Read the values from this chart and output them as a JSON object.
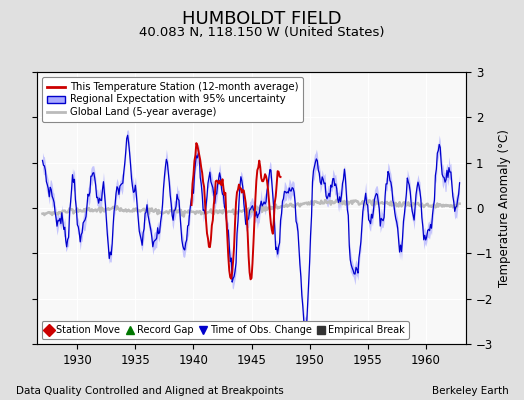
{
  "title": "HUMBOLDT FIELD",
  "subtitle": "40.083 N, 118.150 W (United States)",
  "ylabel": "Temperature Anomaly (°C)",
  "xlim": [
    1926.5,
    1963.5
  ],
  "ylim": [
    -3,
    3
  ],
  "yticks": [
    -3,
    -2,
    -1,
    0,
    1,
    2,
    3
  ],
  "xticks": [
    1930,
    1935,
    1940,
    1945,
    1950,
    1955,
    1960
  ],
  "footer_left": "Data Quality Controlled and Aligned at Breakpoints",
  "footer_right": "Berkeley Earth",
  "legend_entries": [
    "This Temperature Station (12-month average)",
    "Regional Expectation with 95% uncertainty",
    "Global Land (5-year average)"
  ],
  "legend_marker_entries": [
    {
      "label": "Station Move",
      "color": "#cc0000",
      "marker": "D"
    },
    {
      "label": "Record Gap",
      "color": "#007700",
      "marker": "^"
    },
    {
      "label": "Time of Obs. Change",
      "color": "#0000cc",
      "marker": "v"
    },
    {
      "label": "Empirical Break",
      "color": "#333333",
      "marker": "s"
    }
  ],
  "station_color": "#cc0000",
  "regional_color": "#0000cc",
  "regional_fill_color": "#aaaaff",
  "global_color": "#bbbbbb",
  "background_color": "#e0e0e0",
  "plot_bg_color": "#f8f8f8",
  "grid_color": "#ffffff",
  "title_fontsize": 13,
  "subtitle_fontsize": 9.5,
  "axis_fontsize": 8.5,
  "tick_fontsize": 8.5,
  "footer_fontsize": 7.5
}
